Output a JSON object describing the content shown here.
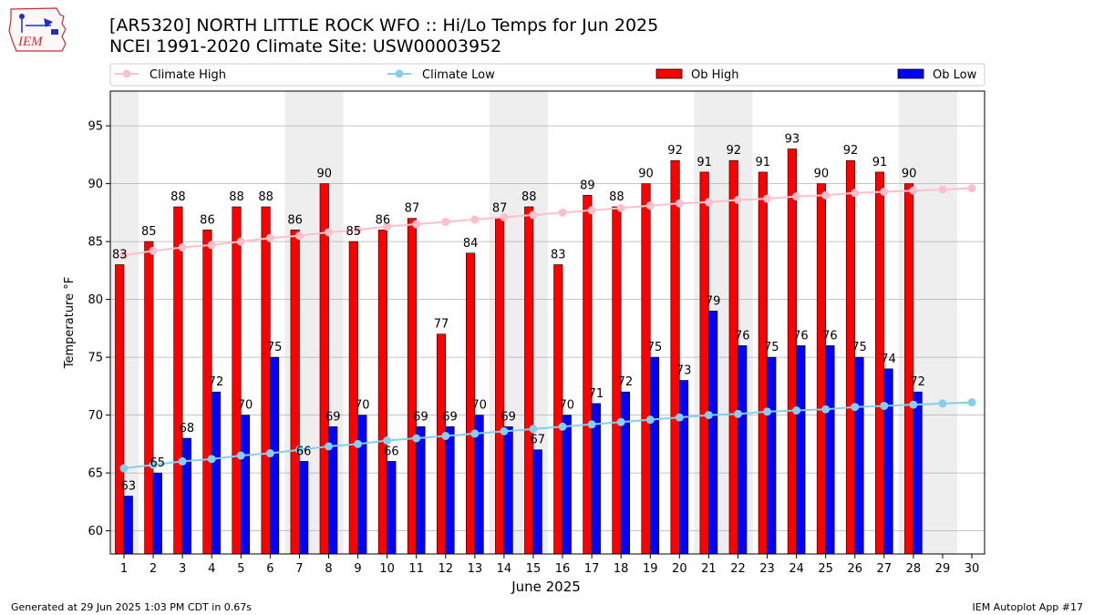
{
  "header": {
    "logo_text": "IEM",
    "title_line1": "[AR5320] NORTH LITTLE ROCK WFO :: Hi/Lo Temps for Jun 2025",
    "title_line2": "NCEI 1991-2020 Climate Site: USW00003952"
  },
  "footer": {
    "generated": "Generated at 29 Jun 2025 1:03 PM CDT in 0.67s",
    "app": "IEM Autoplot App #17"
  },
  "colors": {
    "ob_high": "#ff0000",
    "ob_low": "#0000ff",
    "climate_high": "#ffc0cb",
    "climate_low": "#87ceeb",
    "weekend_shade": "#eeeeee",
    "grid": "#b0b0b0"
  },
  "chart_data": {
    "type": "bar",
    "xlabel": "June 2025",
    "ylabel": "Temperature °F",
    "ylim": [
      58,
      98
    ],
    "yticks": [
      60,
      65,
      70,
      75,
      80,
      85,
      90,
      95
    ],
    "grid": true,
    "legend_placement": "top",
    "days": [
      1,
      2,
      3,
      4,
      5,
      6,
      7,
      8,
      9,
      10,
      11,
      12,
      13,
      14,
      15,
      16,
      17,
      18,
      19,
      20,
      21,
      22,
      23,
      24,
      25,
      26,
      27,
      28,
      29,
      30
    ],
    "shaded_days": [
      [
        1
      ],
      [
        7,
        8
      ],
      [
        14,
        15
      ],
      [
        21,
        22
      ],
      [
        28,
        29
      ]
    ],
    "series": [
      {
        "name": "Climate High",
        "kind": "line",
        "values": [
          83.8,
          84.2,
          84.5,
          84.7,
          85.0,
          85.3,
          85.5,
          85.8,
          86.0,
          86.3,
          86.5,
          86.7,
          86.9,
          87.1,
          87.3,
          87.5,
          87.7,
          87.9,
          88.1,
          88.3,
          88.4,
          88.6,
          88.7,
          88.9,
          89.0,
          89.2,
          89.3,
          89.4,
          89.5,
          89.6
        ]
      },
      {
        "name": "Climate Low",
        "kind": "line",
        "values": [
          65.4,
          65.7,
          66.0,
          66.2,
          66.5,
          66.7,
          67.0,
          67.3,
          67.5,
          67.8,
          68.0,
          68.2,
          68.4,
          68.6,
          68.8,
          69.0,
          69.2,
          69.4,
          69.6,
          69.8,
          70.0,
          70.1,
          70.3,
          70.4,
          70.5,
          70.7,
          70.8,
          70.9,
          71.0,
          71.1
        ]
      },
      {
        "name": "Ob High",
        "kind": "bar",
        "values": [
          83,
          85,
          88,
          86,
          88,
          88,
          86,
          90,
          85,
          86,
          87,
          77,
          84,
          87,
          88,
          83,
          89,
          88,
          90,
          92,
          91,
          92,
          91,
          93,
          90,
          92,
          91,
          90,
          null,
          null
        ]
      },
      {
        "name": "Ob Low",
        "kind": "bar",
        "values": [
          63,
          65,
          68,
          72,
          70,
          75,
          66,
          69,
          70,
          66,
          69,
          69,
          70,
          69,
          67,
          70,
          71,
          72,
          75,
          73,
          79,
          76,
          75,
          76,
          76,
          75,
          74,
          72,
          null,
          null
        ]
      }
    ]
  }
}
